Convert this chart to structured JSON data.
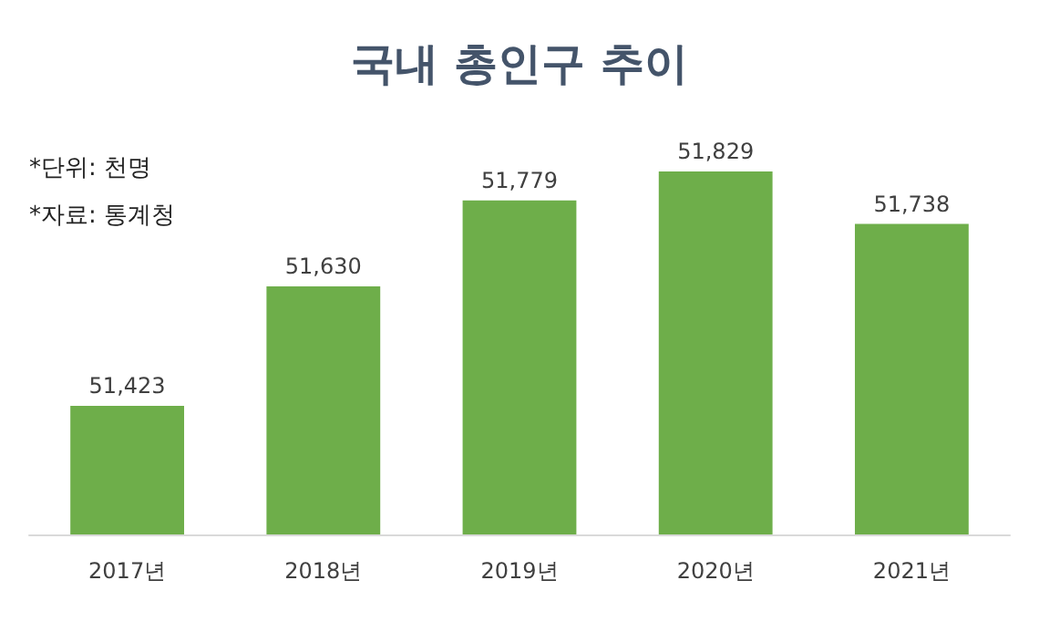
{
  "chart_data": {
    "type": "bar",
    "title": "국내 총인구 추이",
    "categories": [
      "2017년",
      "2018년",
      "2019년",
      "2020년",
      "2021년"
    ],
    "values": [
      51423,
      51630,
      51779,
      51829,
      51738
    ],
    "value_labels": [
      "51,423",
      "51,630",
      "51,779",
      "51,829",
      "51,738"
    ],
    "color": "#6eae4a",
    "ylim": [
      51200,
      51829
    ],
    "tick_labels": "x",
    "annotations": [
      "*단위: 천명",
      "*자료: 통계청"
    ]
  }
}
